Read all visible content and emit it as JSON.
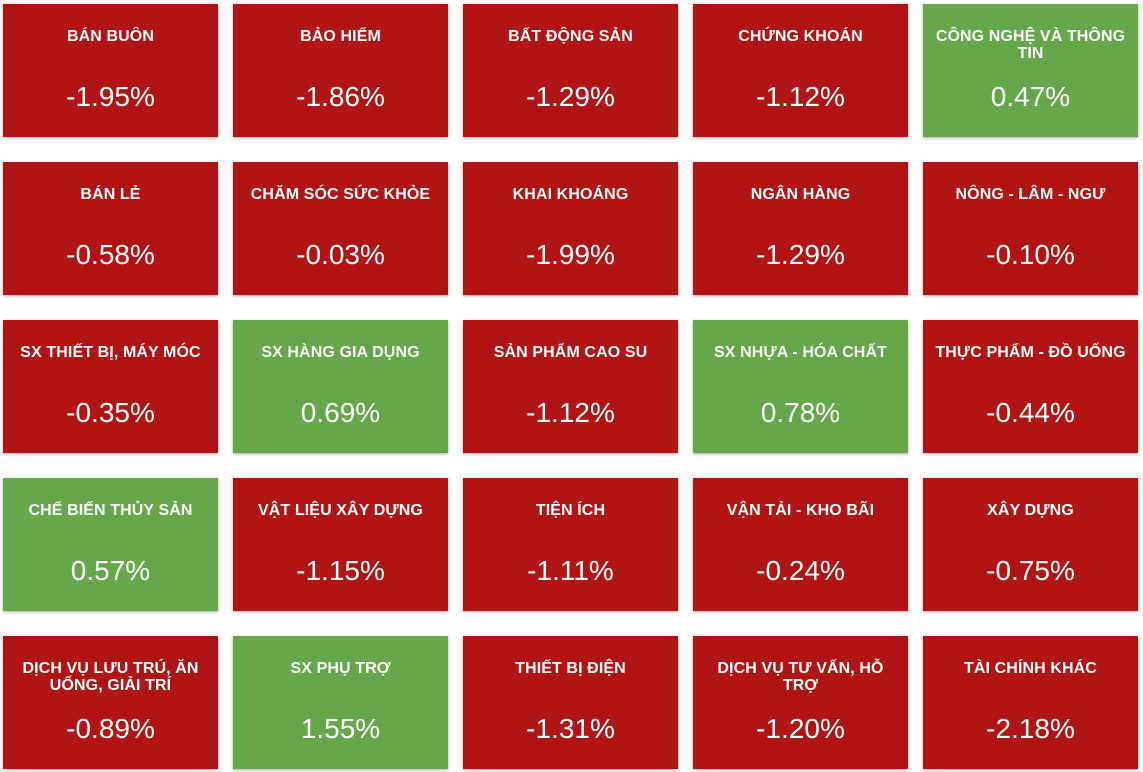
{
  "colors": {
    "negative": "#b11414",
    "positive": "#67a74c"
  },
  "sectors": [
    {
      "name": "BÁN BUÔN",
      "change": "-1.95%",
      "direction": "down"
    },
    {
      "name": "BẢO HIỂM",
      "change": "-1.86%",
      "direction": "down"
    },
    {
      "name": "BẤT ĐỘNG SẢN",
      "change": "-1.29%",
      "direction": "down"
    },
    {
      "name": "CHỨNG KHOÁN",
      "change": "-1.12%",
      "direction": "down"
    },
    {
      "name": "CÔNG NGHỆ VÀ THÔNG TIN",
      "change": "0.47%",
      "direction": "up"
    },
    {
      "name": "BÁN LẺ",
      "change": "-0.58%",
      "direction": "down"
    },
    {
      "name": "CHĂM SÓC SỨC KHỎE",
      "change": "-0.03%",
      "direction": "down"
    },
    {
      "name": "KHAI KHOÁNG",
      "change": "-1.99%",
      "direction": "down"
    },
    {
      "name": "NGÂN HÀNG",
      "change": "-1.29%",
      "direction": "down"
    },
    {
      "name": "NÔNG - LÂM - NGƯ",
      "change": "-0.10%",
      "direction": "down"
    },
    {
      "name": "SX THIẾT BỊ, MÁY MÓC",
      "change": "-0.35%",
      "direction": "down"
    },
    {
      "name": "SX HÀNG GIA DỤNG",
      "change": "0.69%",
      "direction": "up"
    },
    {
      "name": "SẢN PHẨM CAO SU",
      "change": "-1.12%",
      "direction": "down"
    },
    {
      "name": "SX NHỰA - HÓA CHẤT",
      "change": "0.78%",
      "direction": "up"
    },
    {
      "name": "THỰC PHẨM - ĐỒ UỐNG",
      "change": "-0.44%",
      "direction": "down"
    },
    {
      "name": "CHẾ BIẾN THỦY SẢN",
      "change": "0.57%",
      "direction": "up"
    },
    {
      "name": "VẬT LIỆU XÂY DỰNG",
      "change": "-1.15%",
      "direction": "down"
    },
    {
      "name": "TIỆN ÍCH",
      "change": "-1.11%",
      "direction": "down"
    },
    {
      "name": "VẬN TẢI - KHO BÃI",
      "change": "-0.24%",
      "direction": "down"
    },
    {
      "name": "XÂY DỰNG",
      "change": "-0.75%",
      "direction": "down"
    },
    {
      "name": "DỊCH VỤ LƯU TRÚ, ĂN UỐNG, GIẢI TRÍ",
      "change": "-0.89%",
      "direction": "down"
    },
    {
      "name": "SX PHỤ TRỢ",
      "change": "1.55%",
      "direction": "up"
    },
    {
      "name": "THIẾT BỊ ĐIỆN",
      "change": "-1.31%",
      "direction": "down"
    },
    {
      "name": "DỊCH VỤ TƯ VẤN, HỖ TRỢ",
      "change": "-1.20%",
      "direction": "down"
    },
    {
      "name": "TÀI CHÍNH KHÁC",
      "change": "-2.18%",
      "direction": "down"
    }
  ]
}
